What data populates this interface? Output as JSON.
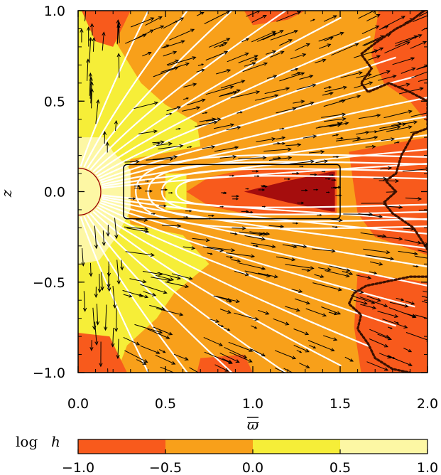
{
  "chart_data": {
    "type": "heatmap",
    "title": "",
    "xlabel": "ϖ",
    "ylabel": "z",
    "xlim": [
      0.0,
      2.0
    ],
    "ylim": [
      -1.0,
      1.0
    ],
    "x_ticks": [
      "0.0",
      "0.5",
      "1.0",
      "1.5",
      "2.0"
    ],
    "y_ticks": [
      "−1.0",
      "−0.5",
      "0.0",
      "0.5",
      "1.0"
    ],
    "x_tick_values": [
      0.0,
      0.5,
      1.0,
      1.5,
      2.0
    ],
    "y_tick_values": [
      -1.0,
      -0.5,
      0.0,
      0.5,
      1.0
    ],
    "colorbar": {
      "label_prefix": "log",
      "label_var": "h",
      "ticks": [
        "−1.0",
        "−0.5",
        "0.0",
        "0.5",
        "1.0"
      ],
      "bins": [
        {
          "range": [
            -1.0,
            -0.5
          ],
          "color": "#f85a1c"
        },
        {
          "range": [
            -0.5,
            0.0
          ],
          "color": "#f8a01a"
        },
        {
          "range": [
            0.0,
            0.5
          ],
          "color": "#f6ee38"
        },
        {
          "range": [
            0.5,
            1.0
          ],
          "color": "#fdf7a4"
        }
      ]
    },
    "colors": {
      "background_field": "#f8a01a",
      "low_region": "#f85a1c",
      "lowest_region": "#a50d0d",
      "high_region": "#f6ee38",
      "highest_region": "#fdf7a4",
      "field_lines": "#ffffff",
      "vectors": "#000000",
      "boundary_dotted": "#3a1000",
      "disk_outline": "#000000",
      "star_outline": "#9b0000"
    },
    "disk_box": {
      "x_range": [
        0.26,
        1.5
      ],
      "z_range": [
        -0.15,
        0.15
      ]
    },
    "central_object_radius": 0.13
  }
}
